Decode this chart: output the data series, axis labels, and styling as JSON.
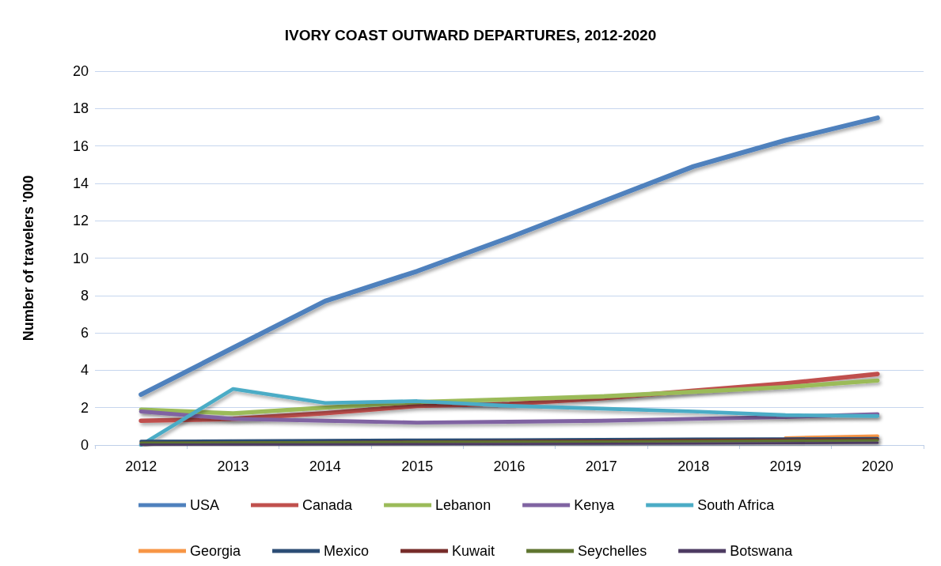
{
  "chart_data": {
    "type": "line",
    "title": "IVORY COAST OUTWARD DEPARTURES, 2012-2020",
    "ylabel": "Number of travelers '000",
    "categories": [
      "2012",
      "2013",
      "2014",
      "2015",
      "2016",
      "2017",
      "2018",
      "2019",
      "2020"
    ],
    "ylim": [
      0,
      20
    ],
    "yticks": [
      0,
      2,
      4,
      6,
      8,
      10,
      12,
      14,
      16,
      18,
      20
    ],
    "grid": "y",
    "legend": "bottom",
    "marker": "none",
    "line_style": "solid",
    "series": [
      {
        "name": "USA",
        "color": "#4f81bd",
        "values": [
          2.7,
          5.2,
          7.7,
          9.3,
          11.1,
          13.0,
          14.9,
          16.3,
          17.5
        ]
      },
      {
        "name": "Canada",
        "color": "#c0504d",
        "values": [
          1.3,
          1.4,
          1.7,
          2.1,
          2.2,
          2.5,
          2.9,
          3.3,
          3.8
        ]
      },
      {
        "name": "Lebanon",
        "color": "#9bbb59",
        "values": [
          1.9,
          1.7,
          2.0,
          2.3,
          2.45,
          2.6,
          2.85,
          3.1,
          3.45
        ]
      },
      {
        "name": "Kenya",
        "color": "#8064a2",
        "values": [
          1.8,
          1.4,
          1.3,
          1.2,
          1.25,
          1.3,
          1.4,
          1.5,
          1.65
        ]
      },
      {
        "name": "South Africa",
        "color": "#4bacc6",
        "values": [
          0,
          3.0,
          2.25,
          2.35,
          2.1,
          1.95,
          1.8,
          1.6,
          1.55
        ]
      },
      {
        "name": "Georgia",
        "color": "#f79646",
        "values": [
          null,
          null,
          null,
          null,
          null,
          null,
          null,
          0.38,
          0.48
        ]
      },
      {
        "name": "Mexico",
        "color": "#2c4d75",
        "values": [
          0.2,
          0.22,
          0.25,
          0.27,
          0.28,
          0.3,
          0.32,
          0.33,
          0.35
        ]
      },
      {
        "name": "Kuwait",
        "color": "#772c2a",
        "values": [
          0.1,
          0.12,
          0.15,
          0.17,
          0.2,
          0.22,
          0.25,
          0.27,
          0.3
        ]
      },
      {
        "name": "Seychelles",
        "color": "#5f7530",
        "values": [
          0.12,
          0.13,
          0.14,
          0.16,
          0.18,
          0.19,
          0.21,
          0.23,
          0.25
        ]
      },
      {
        "name": "Botswana",
        "color": "#4d3b62",
        "values": [
          0.02,
          0.03,
          0.04,
          0.05,
          0.06,
          0.07,
          0.08,
          0.1,
          0.12
        ]
      }
    ]
  }
}
